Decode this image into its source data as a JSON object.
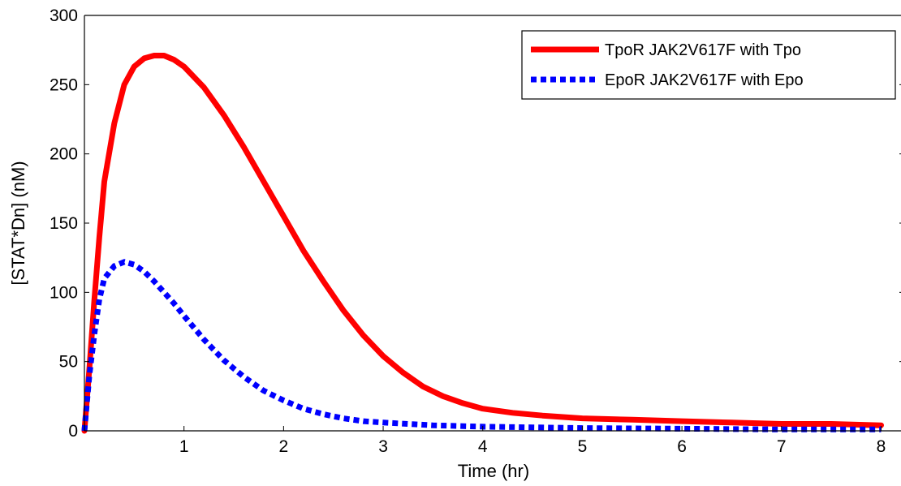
{
  "chart_data": {
    "type": "line",
    "title": "",
    "xlabel": "Time (hr)",
    "ylabel": "[STAT*Dn] (nM)",
    "xlim": [
      0,
      8.2
    ],
    "ylim": [
      0,
      300
    ],
    "xticks": [
      1,
      2,
      3,
      4,
      5,
      6,
      7,
      8
    ],
    "yticks": [
      0,
      50,
      100,
      150,
      200,
      250,
      300
    ],
    "grid": false,
    "legend_position": "top-right",
    "series": [
      {
        "name": "TpoR JAK2V617F with Tpo",
        "color": "#ff0000",
        "style": "solid",
        "x": [
          0,
          0.05,
          0.1,
          0.15,
          0.2,
          0.3,
          0.4,
          0.5,
          0.6,
          0.7,
          0.8,
          0.9,
          1.0,
          1.2,
          1.4,
          1.6,
          1.8,
          2.0,
          2.2,
          2.4,
          2.6,
          2.8,
          3.0,
          3.2,
          3.4,
          3.6,
          3.8,
          4.0,
          4.3,
          4.6,
          5.0,
          5.5,
          6.0,
          6.5,
          7.0,
          7.5,
          8.0
        ],
        "y": [
          0,
          45,
          95,
          140,
          180,
          222,
          250,
          263,
          269,
          271,
          271,
          268,
          263,
          248,
          228,
          205,
          180,
          155,
          130,
          108,
          87,
          69,
          54,
          42,
          32,
          25,
          20,
          16,
          13,
          11,
          9,
          8,
          7,
          6,
          5,
          5,
          4
        ]
      },
      {
        "name": "EpoR JAK2V617F with Epo",
        "color": "#0000ff",
        "style": "dotted",
        "x": [
          0,
          0.05,
          0.1,
          0.15,
          0.2,
          0.3,
          0.4,
          0.5,
          0.6,
          0.7,
          0.8,
          0.9,
          1.0,
          1.2,
          1.4,
          1.6,
          1.8,
          2.0,
          2.2,
          2.4,
          2.6,
          2.8,
          3.0,
          3.5,
          4.0,
          4.5,
          5.0,
          6.0,
          7.0,
          8.0
        ],
        "y": [
          0,
          40,
          70,
          95,
          110,
          119,
          122,
          120,
          115,
          108,
          100,
          92,
          83,
          66,
          51,
          39,
          29,
          22,
          16,
          12,
          9,
          7,
          6,
          4,
          3,
          2.5,
          2,
          1.5,
          1,
          1
        ]
      }
    ]
  }
}
